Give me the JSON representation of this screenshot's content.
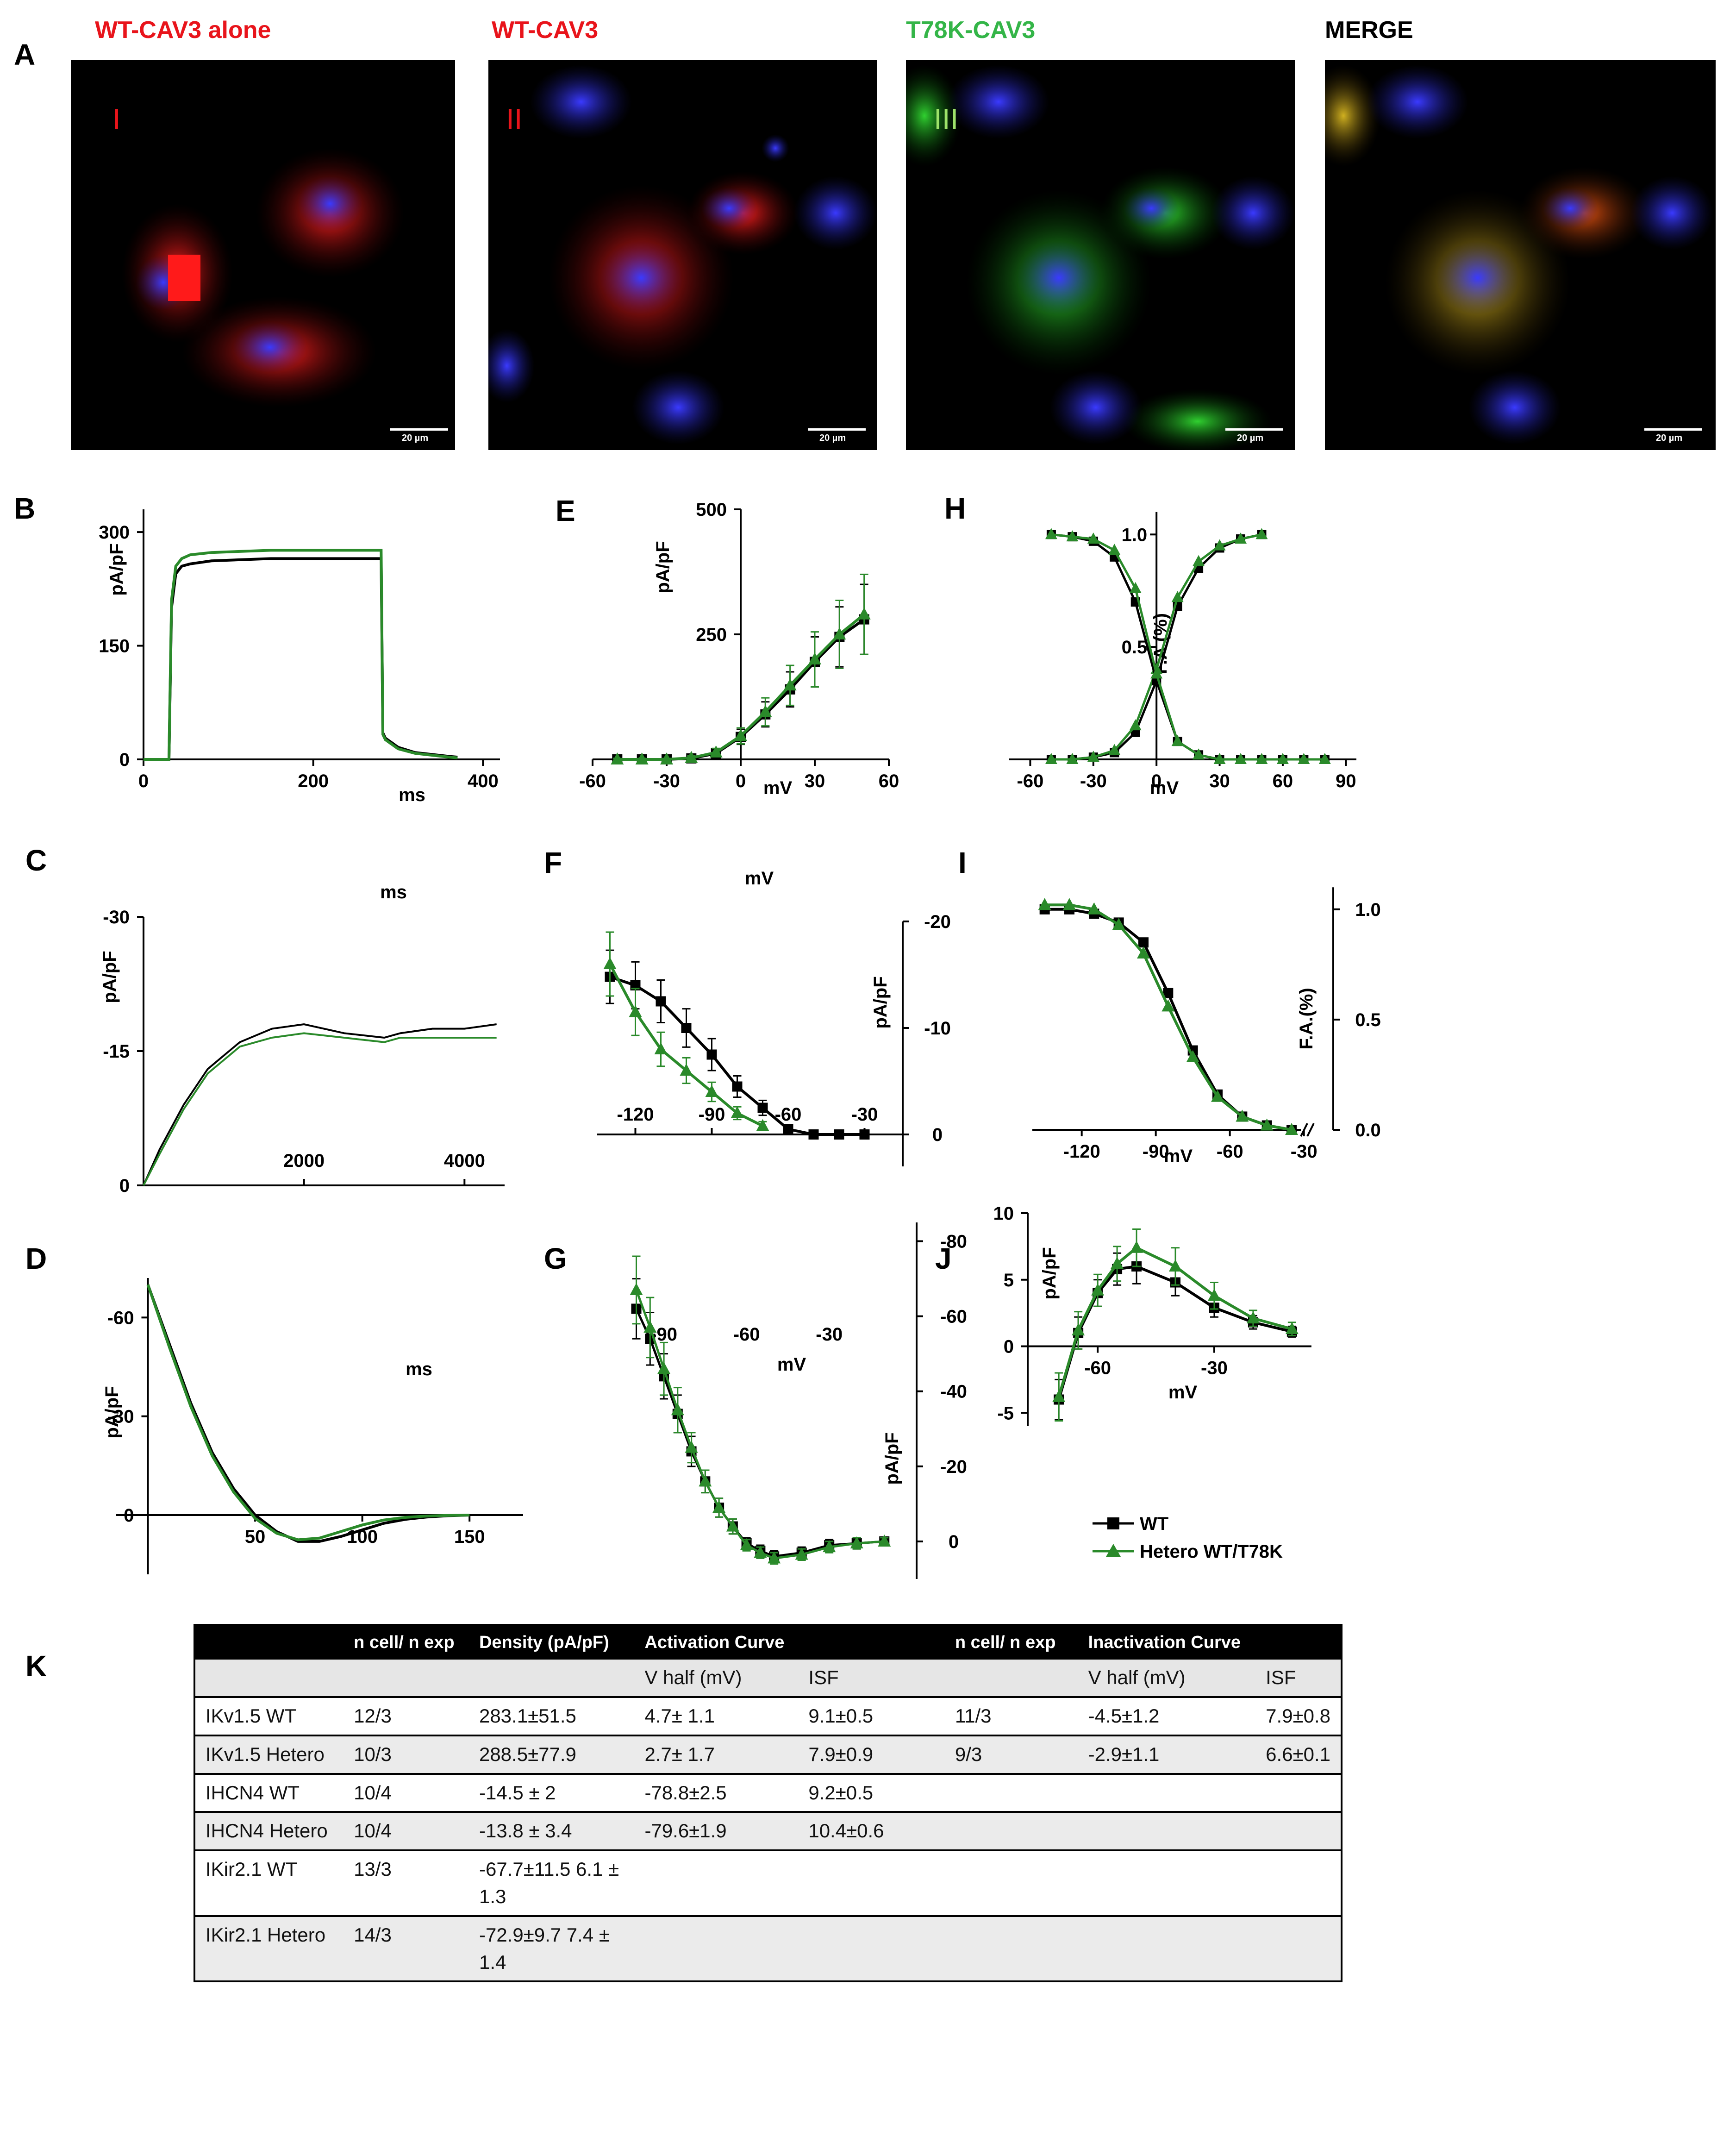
{
  "panel_letters": [
    "A",
    "B",
    "C",
    "D",
    "E",
    "F",
    "G",
    "H",
    "I",
    "J",
    "K"
  ],
  "images": [
    {
      "title": "WT-CAV3 alone",
      "roman": "I",
      "title_color": "#e8141b",
      "roman_color": "#e8141b",
      "scale": "20 µm"
    },
    {
      "title": "WT-CAV3",
      "roman": "II",
      "title_color": "#e8141b",
      "roman_color": "#e8141b",
      "scale": "20 µm"
    },
    {
      "title": "T78K-CAV3",
      "roman": "III",
      "title_color": "#34b548",
      "roman_color": "#9ee36a",
      "scale": "20 µm"
    },
    {
      "title": "MERGE",
      "roman": "",
      "title_color": "#000000",
      "roman_color": "#000000",
      "scale": "20 µm"
    }
  ],
  "legend": [
    {
      "name": "WT",
      "color": "#000000",
      "marker": "square"
    },
    {
      "name": "Hetero WT/T78K",
      "color": "#2a8a2a",
      "marker": "triangle"
    }
  ],
  "colors": {
    "wt": "#000000",
    "hetero": "#2a8a2a"
  },
  "chart_data": [
    {
      "panel": "B",
      "type": "line",
      "xlabel": "ms",
      "ylabel": "pA/pF",
      "xticks": [
        "0",
        "200",
        "400"
      ],
      "yticks": [
        "0",
        "150",
        "300"
      ],
      "xlim": [
        0,
        420
      ],
      "ylim": [
        0,
        330
      ],
      "series": [
        {
          "name": "WT",
          "x": [
            0,
            30,
            33,
            38,
            45,
            55,
            80,
            150,
            280,
            282,
            285,
            300,
            320,
            360,
            370
          ],
          "y": [
            0,
            0,
            200,
            245,
            255,
            258,
            262,
            265,
            265,
            35,
            28,
            16,
            9,
            4,
            3
          ]
        },
        {
          "name": "Hetero WT/T78K",
          "x": [
            0,
            30,
            33,
            38,
            45,
            55,
            80,
            150,
            280,
            282,
            285,
            300,
            320,
            360,
            370
          ],
          "y": [
            0,
            0,
            210,
            255,
            265,
            270,
            273,
            276,
            276,
            33,
            26,
            14,
            8,
            3,
            2
          ]
        }
      ]
    },
    {
      "panel": "C",
      "type": "line",
      "xlabel": "ms",
      "ylabel": "pA/pF",
      "xticks": [
        "2000",
        "4000"
      ],
      "yticks": [
        "0",
        "-15",
        "-30"
      ],
      "xlim": [
        0,
        4500
      ],
      "ylim": [
        -30,
        0
      ],
      "series": [
        {
          "name": "WT",
          "x": [
            0,
            200,
            500,
            800,
            1200,
            1600,
            2000,
            2500,
            3000,
            3200,
            3600,
            4000,
            4400
          ],
          "y": [
            0,
            -4,
            -9,
            -13,
            -16,
            -17.5,
            -18,
            -17,
            -16.5,
            -17,
            -17.5,
            -17.5,
            -18
          ]
        },
        {
          "name": "Hetero WT/T78K",
          "x": [
            0,
            200,
            500,
            800,
            1200,
            1600,
            2000,
            2500,
            3000,
            3200,
            3600,
            4000,
            4400
          ],
          "y": [
            0,
            -3.5,
            -8.5,
            -12.5,
            -15.5,
            -16.5,
            -17,
            -16.5,
            -16,
            -16.5,
            -16.5,
            -16.5,
            -16.5
          ]
        }
      ]
    },
    {
      "panel": "D",
      "type": "line",
      "xlabel": "ms",
      "ylabel": "pA/pF",
      "xticks": [
        "50",
        "100",
        "150"
      ],
      "yticks": [
        "0",
        "-30",
        "-60"
      ],
      "xlim": [
        -15,
        175
      ],
      "ylim": [
        -72,
        18
      ],
      "series": [
        {
          "name": "WT",
          "x": [
            0,
            10,
            20,
            30,
            40,
            50,
            60,
            70,
            80,
            90,
            100,
            110,
            120,
            130,
            140,
            150
          ],
          "y": [
            -70,
            -52,
            -34,
            -19,
            -8,
            0,
            5,
            8,
            8,
            6.5,
            4.5,
            2.5,
            1.3,
            0.6,
            0.2,
            0
          ]
        },
        {
          "name": "Hetero WT/T78K",
          "x": [
            0,
            10,
            20,
            30,
            40,
            50,
            60,
            70,
            80,
            90,
            100,
            110,
            120,
            130,
            140,
            150
          ],
          "y": [
            -70,
            -51,
            -33,
            -18,
            -7,
            1,
            5.5,
            7.5,
            7,
            5,
            3,
            1.5,
            0.7,
            0.3,
            0.1,
            0
          ]
        }
      ]
    },
    {
      "panel": "E",
      "type": "line",
      "xlabel": "mV",
      "ylabel": "pA/pF",
      "xticks": [
        "-60",
        "-30",
        "0",
        "30",
        "60"
      ],
      "yticks": [
        "250",
        "500"
      ],
      "xlim": [
        -60,
        60
      ],
      "ylim": [
        0,
        500
      ],
      "series": [
        {
          "name": "WT",
          "x": [
            -50,
            -40,
            -30,
            -20,
            -10,
            0,
            10,
            20,
            30,
            40,
            50
          ],
          "y": [
            0,
            0,
            0,
            2,
            12,
            45,
            90,
            140,
            195,
            245,
            280
          ],
          "err": [
            2,
            2,
            2,
            4,
            8,
            15,
            25,
            35,
            50,
            60,
            70
          ]
        },
        {
          "name": "Hetero WT/T78K",
          "x": [
            -50,
            -40,
            -30,
            -20,
            -10,
            0,
            10,
            20,
            30,
            40,
            50
          ],
          "y": [
            0,
            0,
            0,
            3,
            14,
            47,
            95,
            148,
            200,
            250,
            290
          ],
          "err": [
            2,
            2,
            2,
            4,
            8,
            16,
            28,
            40,
            55,
            68,
            80
          ]
        }
      ]
    },
    {
      "panel": "F",
      "type": "line",
      "xlabel": "mV",
      "ylabel": "pA/pF",
      "xticks": [
        "-120",
        "-90",
        "-60",
        "-30"
      ],
      "yticks": [
        "0",
        "-10",
        "-20"
      ],
      "xlim": [
        -135,
        -15
      ],
      "ylim": [
        -20,
        0
      ],
      "series": [
        {
          "name": "WT",
          "x": [
            -130,
            -120,
            -110,
            -100,
            -90,
            -80,
            -70,
            -60,
            -50,
            -40,
            -30
          ],
          "y": [
            -14.8,
            -14,
            -12.5,
            -10,
            -7.5,
            -4.5,
            -2.5,
            -0.5,
            0,
            0,
            0
          ],
          "err": [
            2.5,
            2.2,
            2,
            1.8,
            1.5,
            1,
            0.7,
            0.4,
            0.2,
            0.2,
            0.2
          ]
        },
        {
          "name": "Hetero WT/T78K",
          "x": [
            -130,
            -120,
            -110,
            -100,
            -90,
            -80,
            -70
          ],
          "y": [
            -16,
            -11.5,
            -8,
            -6,
            -4,
            -2,
            -0.8
          ],
          "err": [
            3,
            2.2,
            1.6,
            1.2,
            0.9,
            0.6,
            0.4
          ]
        }
      ]
    },
    {
      "panel": "G",
      "type": "line",
      "xlabel": "mV",
      "ylabel": "pA/pF",
      "xticks": [
        "-90",
        "-60",
        "-30"
      ],
      "yticks": [
        "0",
        "-20",
        "-40",
        "-60",
        "-80"
      ],
      "xlim": [
        -110,
        -5
      ],
      "ylim": [
        -85,
        10
      ],
      "series": [
        {
          "name": "WT",
          "x": [
            -100,
            -95,
            -90,
            -85,
            -80,
            -75,
            -70,
            -65,
            -60,
            -55,
            -50,
            -40,
            -30,
            -20,
            -10
          ],
          "y": [
            -62,
            -54,
            -44,
            -34,
            -24,
            -16,
            -9,
            -4,
            0.5,
            2.5,
            4,
            3,
            1,
            0.5,
            0
          ],
          "err": [
            8,
            7,
            6,
            5,
            4,
            3,
            2.5,
            2,
            1.5,
            1.5,
            1.5,
            1.5,
            1.5,
            1.5,
            1
          ]
        },
        {
          "name": "Hetero WT/T78K",
          "x": [
            -100,
            -95,
            -90,
            -85,
            -80,
            -75,
            -70,
            -65,
            -60,
            -55,
            -50,
            -40,
            -30,
            -20,
            -10
          ],
          "y": [
            -67,
            -57,
            -46,
            -35,
            -25,
            -16,
            -9,
            -4,
            1,
            3,
            4.5,
            3.5,
            1.5,
            0.5,
            0
          ],
          "err": [
            9,
            8,
            7,
            6,
            4,
            3,
            2.5,
            2,
            1.5,
            1.5,
            1.5,
            1.5,
            1.5,
            1.5,
            1
          ]
        }
      ]
    },
    {
      "panel": "H",
      "type": "line",
      "xlabel": "mV",
      "ylabel": "F.A (%)",
      "xticks": [
        "-60",
        "-30",
        "0",
        "30",
        "60",
        "90"
      ],
      "yticks": [
        "0.5",
        "1.0"
      ],
      "xlim": [
        -70,
        95
      ],
      "ylim": [
        0,
        1.05
      ],
      "series": [
        {
          "name": "WT activation",
          "x": [
            -50,
            -40,
            -30,
            -20,
            -10,
            0,
            10,
            20,
            30,
            40,
            50
          ],
          "y": [
            0,
            0,
            0.01,
            0.03,
            0.12,
            0.35,
            0.68,
            0.85,
            0.94,
            0.98,
            1
          ]
        },
        {
          "name": "Hetero WT/T78K activation",
          "x": [
            -50,
            -40,
            -30,
            -20,
            -10,
            0,
            10,
            20,
            30,
            40,
            50
          ],
          "y": [
            0,
            0,
            0.01,
            0.04,
            0.15,
            0.4,
            0.72,
            0.88,
            0.95,
            0.98,
            1
          ]
        },
        {
          "name": "WT inactivation",
          "x": [
            -50,
            -40,
            -30,
            -20,
            -10,
            0,
            10,
            20,
            30,
            40,
            50,
            60,
            70,
            80
          ],
          "y": [
            1,
            0.99,
            0.97,
            0.9,
            0.7,
            0.35,
            0.08,
            0.02,
            0,
            0,
            0,
            0,
            0,
            0
          ]
        },
        {
          "name": "Hetero WT/T78K inactivation",
          "x": [
            -50,
            -40,
            -30,
            -20,
            -10,
            0,
            10,
            20,
            30,
            40,
            50,
            60,
            70,
            80
          ],
          "y": [
            1,
            0.99,
            0.98,
            0.93,
            0.76,
            0.38,
            0.08,
            0.02,
            0,
            0,
            0,
            0,
            0,
            0
          ]
        }
      ]
    },
    {
      "panel": "I",
      "type": "line",
      "xlabel": "mV",
      "ylabel": "F.A.(%)",
      "xticks": [
        "-120",
        "-90",
        "-60",
        "-30"
      ],
      "yticks": [
        "0.0",
        "0.5",
        "1.0"
      ],
      "xlim": [
        -140,
        -20
      ],
      "ylim": [
        0,
        1.05
      ],
      "series": [
        {
          "name": "WT",
          "x": [
            -135,
            -125,
            -115,
            -105,
            -95,
            -85,
            -75,
            -65,
            -55,
            -45,
            -35
          ],
          "y": [
            1,
            1,
            0.98,
            0.94,
            0.85,
            0.62,
            0.36,
            0.16,
            0.06,
            0.02,
            0
          ]
        },
        {
          "name": "Hetero WT/T78K",
          "x": [
            -135,
            -125,
            -115,
            -105,
            -95,
            -85,
            -75,
            -65,
            -55,
            -45,
            -35
          ],
          "y": [
            1.02,
            1.02,
            1,
            0.93,
            0.8,
            0.56,
            0.33,
            0.15,
            0.06,
            0.02,
            0
          ]
        }
      ]
    },
    {
      "panel": "J",
      "type": "line",
      "xlabel": "mV",
      "ylabel": "pA/pF",
      "xticks": [
        "-60",
        "-30"
      ],
      "yticks": [
        "10",
        "5",
        "0",
        "-5"
      ],
      "xlim": [
        -78,
        3
      ],
      "ylim": [
        -6,
        10
      ],
      "series": [
        {
          "name": "WT",
          "x": [
            -70,
            -65,
            -60,
            -55,
            -50,
            -40,
            -30,
            -20,
            -10
          ],
          "y": [
            -4,
            1,
            4,
            5.8,
            6,
            4.8,
            2.9,
            1.8,
            1.1
          ],
          "err": [
            1.5,
            1.2,
            1,
            1.2,
            1.3,
            1,
            0.7,
            0.5,
            0.4
          ]
        },
        {
          "name": "Hetero WT/T78K",
          "x": [
            -70,
            -65,
            -60,
            -55,
            -50,
            -40,
            -30,
            -20,
            -10
          ],
          "y": [
            -3.8,
            1.2,
            4.2,
            6.2,
            7.4,
            6,
            3.8,
            2.1,
            1.3
          ],
          "err": [
            1.8,
            1.4,
            1.2,
            1.3,
            1.4,
            1.4,
            1,
            0.6,
            0.5
          ]
        }
      ]
    },
    {
      "panel": "K",
      "type": "table",
      "header": [
        "",
        "n cell/ n exp",
        "Density (pA/pF)",
        "Activation Curve",
        "",
        "n cell/ n exp",
        "Inactivation Curve",
        ""
      ],
      "subheader": [
        "",
        "",
        "",
        "V half (mV)",
        "ISF",
        "",
        "V half (mV)",
        "ISF"
      ],
      "rows": [
        [
          "IKv1.5 WT",
          "12/3",
          "283.1±51.5",
          "4.7± 1.1",
          "9.1±0.5",
          "11/3",
          "-4.5±1.2",
          "7.9±0.8"
        ],
        [
          "IKv1.5 Hetero",
          "10/3",
          "288.5±77.9",
          "2.7± 1.7",
          "7.9±0.9",
          "9/3",
          "-2.9±1.1",
          "6.6±0.1"
        ],
        [
          "IHCN4 WT",
          "10/4",
          "-14.5 ± 2",
          "-78.8±2.5",
          "9.2±0.5",
          "",
          "",
          ""
        ],
        [
          "IHCN4 Hetero",
          "10/4",
          "-13.8 ± 3.4",
          "-79.6±1.9",
          "10.4±0.6",
          "",
          "",
          ""
        ],
        [
          "IKir2.1 WT",
          "13/3",
          "-67.7±11.5 6.1 ± 1.3",
          "",
          "",
          "",
          "",
          ""
        ],
        [
          "IKir2.1 Hetero",
          "14/3",
          "-72.9±9.7 7.4 ± 1.4",
          "",
          "",
          "",
          "",
          ""
        ]
      ]
    }
  ]
}
